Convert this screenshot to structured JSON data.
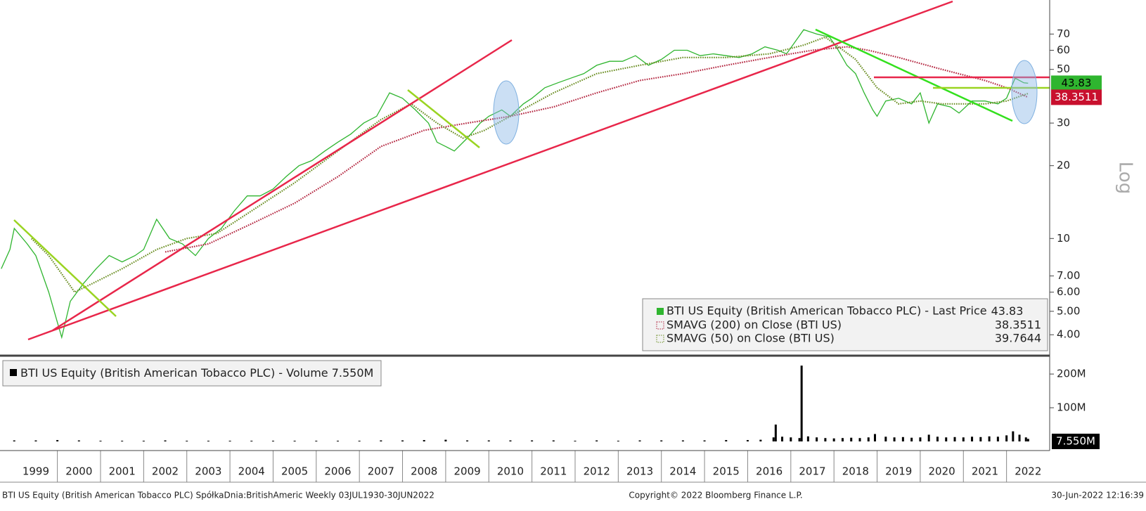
{
  "chart_data": [
    {
      "type": "line",
      "xlim": [
        1998.67,
        2023.0
      ],
      "ylim": [
        3.3,
        96.8
      ],
      "ylog": true,
      "grid": false,
      "y_axis_label": "Log",
      "yticks": [
        70,
        60,
        50,
        30,
        20,
        10,
        {
          "value": 7,
          "label": "7.00"
        },
        {
          "value": 6,
          "label": "6.00"
        },
        {
          "value": 5,
          "label": "5.00"
        },
        {
          "value": 4,
          "label": "4.00"
        }
      ],
      "series": [
        {
          "name": "BTI US Equity (British American Tobacco PLC) - Last Price",
          "color": "#2fb52f",
          "style": "solid",
          "x": [
            1998.7,
            1998.9,
            1999.0,
            1999.3,
            1999.5,
            1999.8,
            2000.0,
            2000.1,
            2000.3,
            2000.6,
            2000.9,
            2001.2,
            2001.5,
            2001.8,
            2002.0,
            2002.3,
            2002.6,
            2002.9,
            2003.2,
            2003.5,
            2003.8,
            2004.1,
            2004.4,
            2004.7,
            2005.0,
            2005.3,
            2005.6,
            2005.9,
            2006.2,
            2006.5,
            2006.8,
            2007.1,
            2007.4,
            2007.7,
            2008.0,
            2008.3,
            2008.6,
            2008.8,
            2009.0,
            2009.2,
            2009.5,
            2009.8,
            2010.0,
            2010.3,
            2010.5,
            2010.8,
            2011.0,
            2011.3,
            2011.6,
            2011.9,
            2012.2,
            2012.5,
            2012.8,
            2013.1,
            2013.4,
            2013.7,
            2014.0,
            2014.3,
            2014.6,
            2014.9,
            2015.2,
            2015.5,
            2015.8,
            2016.1,
            2016.4,
            2016.7,
            2016.9,
            2017.1,
            2017.3,
            2017.6,
            2017.9,
            2018.1,
            2018.3,
            2018.5,
            2018.7,
            2018.9,
            2019.0,
            2019.2,
            2019.5,
            2019.8,
            2020.0,
            2020.2,
            2020.4,
            2020.7,
            2020.9,
            2021.2,
            2021.5,
            2021.8,
            2022.0,
            2022.2,
            2022.4,
            2022.5
          ],
          "values": [
            7.5,
            9,
            11,
            9.5,
            8.5,
            6,
            4.5,
            3.9,
            5.5,
            6.5,
            7.5,
            8.5,
            8,
            8.5,
            9,
            12,
            10,
            9.5,
            8.5,
            10,
            11,
            13,
            15,
            15,
            16,
            18,
            20,
            21,
            23,
            25,
            27,
            30,
            32,
            40,
            38,
            34,
            30,
            25,
            24,
            23,
            26,
            30,
            32,
            34,
            32,
            36,
            38,
            42,
            44,
            46,
            48,
            52,
            54,
            54,
            57,
            52,
            55,
            60,
            60,
            57,
            58,
            57,
            56,
            58,
            62,
            60,
            58,
            65,
            73,
            70,
            68,
            60,
            52,
            48,
            40,
            34,
            32,
            37,
            38,
            36,
            40,
            30,
            36,
            35,
            33,
            37,
            37,
            36,
            38,
            46,
            44,
            43.83
          ]
        },
        {
          "name": "SMAVG (200)  on Close (BTI US)",
          "color": "#b3243e",
          "style": "dotted",
          "x": [
            2002.5,
            2003.5,
            2004.5,
            2005.5,
            2006.5,
            2007.5,
            2008.5,
            2009.5,
            2010.5,
            2011.5,
            2012.5,
            2013.5,
            2014.5,
            2015.5,
            2016.5,
            2017.5,
            2018.3,
            2018.8,
            2019.5,
            2020.5,
            2021.5,
            2022.0,
            2022.5
          ],
          "values": [
            8.8,
            9.5,
            11.5,
            14,
            18,
            24,
            28,
            30,
            32,
            35,
            40,
            45,
            48,
            52,
            56,
            60,
            62,
            60,
            56,
            50,
            45,
            42,
            38.3511
          ]
        },
        {
          "name": "SMAVG (50)  on Close (BTI US)",
          "color": "#6b8e23",
          "style": "dotted",
          "x": [
            1999.4,
            1999.8,
            2000.4,
            2000.8,
            2001.5,
            2002.3,
            2003.0,
            2003.7,
            2004.5,
            2005.5,
            2006.5,
            2007.5,
            2008.2,
            2008.8,
            2009.4,
            2009.9,
            2010.5,
            2011.5,
            2012.5,
            2013.5,
            2014.5,
            2015.5,
            2016.5,
            2017.3,
            2017.8,
            2018.5,
            2019.0,
            2019.5,
            2020.0,
            2020.5,
            2021.0,
            2021.5,
            2022.0,
            2022.5
          ],
          "values": [
            10,
            8.5,
            6,
            6.5,
            7.5,
            9,
            10,
            10.5,
            13,
            17,
            23,
            31,
            36,
            30,
            26,
            28,
            32,
            40,
            48,
            52,
            56,
            56,
            58,
            63,
            68,
            55,
            42,
            36,
            37,
            36,
            36,
            36,
            37,
            39.7644
          ]
        }
      ]
    },
    {
      "type": "bar",
      "xlim": [
        1998.67,
        2023.0
      ],
      "ylim": [
        -25,
        242
      ],
      "yticks": [
        {
          "value": 200,
          "label": "200M"
        },
        {
          "value": 100,
          "label": "100M"
        }
      ],
      "xticks": [
        {
          "value": 1999.5,
          "label": "1999"
        },
        {
          "value": 2000.5,
          "label": "2000"
        },
        {
          "value": 2001.5,
          "label": "2001"
        },
        {
          "value": 2002.5,
          "label": "2002"
        },
        {
          "value": 2003.5,
          "label": "2003"
        },
        {
          "value": 2004.5,
          "label": "2004"
        },
        {
          "value": 2005.5,
          "label": "2005"
        },
        {
          "value": 2006.5,
          "label": "2006"
        },
        {
          "value": 2007.5,
          "label": "2007"
        },
        {
          "value": 2008.5,
          "label": "2008"
        },
        {
          "value": 2009.5,
          "label": "2009"
        },
        {
          "value": 2010.5,
          "label": "2010"
        },
        {
          "value": 2011.5,
          "label": "2011"
        },
        {
          "value": 2012.5,
          "label": "2012"
        },
        {
          "value": 2013.5,
          "label": "2013"
        },
        {
          "value": 2014.5,
          "label": "2014"
        },
        {
          "value": 2015.5,
          "label": "2015"
        },
        {
          "value": 2016.5,
          "label": "2016"
        },
        {
          "value": 2017.5,
          "label": "2017"
        },
        {
          "value": 2018.5,
          "label": "2018"
        },
        {
          "value": 2019.5,
          "label": "2019"
        },
        {
          "value": 2020.5,
          "label": "2020"
        },
        {
          "value": 2021.5,
          "label": "2021"
        },
        {
          "value": 2022.5,
          "label": "2022"
        }
      ],
      "series": [
        {
          "name": "BTI US Equity (British American Tobacco PLC) - Volume",
          "color": "#000000",
          "last_value_label": "7.550M",
          "x": [
            1999.0,
            1999.5,
            2000.0,
            2000.5,
            2001.0,
            2001.5,
            2002.0,
            2002.5,
            2003.0,
            2003.5,
            2004.0,
            2004.5,
            2005.0,
            2005.5,
            2006.0,
            2006.5,
            2007.0,
            2007.5,
            2008.0,
            2008.5,
            2009.0,
            2009.5,
            2010.0,
            2010.5,
            2011.0,
            2011.5,
            2012.0,
            2012.5,
            2013.0,
            2013.5,
            2014.0,
            2014.5,
            2015.0,
            2015.5,
            2016.0,
            2016.3,
            2016.6,
            2016.65,
            2016.8,
            2017.0,
            2017.2,
            2017.25,
            2017.4,
            2017.6,
            2017.8,
            2018.0,
            2018.2,
            2018.4,
            2018.6,
            2018.8,
            2018.95,
            2019.2,
            2019.4,
            2019.6,
            2019.8,
            2020.0,
            2020.2,
            2020.4,
            2020.6,
            2020.8,
            2021.0,
            2021.2,
            2021.4,
            2021.6,
            2021.8,
            2022.0,
            2022.15,
            2022.3,
            2022.45,
            2022.5
          ],
          "values": [
            3,
            3,
            4,
            3,
            2,
            2,
            2,
            3,
            2,
            2,
            2,
            2,
            2,
            2,
            2,
            2,
            2,
            3,
            3,
            4,
            5,
            3,
            3,
            3,
            3,
            3,
            2,
            3,
            2,
            3,
            3,
            3,
            3,
            4,
            4,
            5,
            12,
            50,
            14,
            12,
            10,
            225,
            15,
            12,
            10,
            9,
            10,
            11,
            10,
            12,
            22,
            14,
            12,
            13,
            11,
            12,
            20,
            14,
            12,
            13,
            12,
            14,
            13,
            15,
            14,
            18,
            30,
            20,
            12,
            7.55
          ]
        }
      ]
    }
  ],
  "footer": {
    "left": "BTI US Equity (British American Tobacco PLC) SpółkaDnia:BritishAmeric  Weekly 03JUL1930-30JUN2022",
    "center": "Copyright© 2022 Bloomberg Finance L.P.",
    "right": "30-Jun-2022 12:16:39"
  }
}
